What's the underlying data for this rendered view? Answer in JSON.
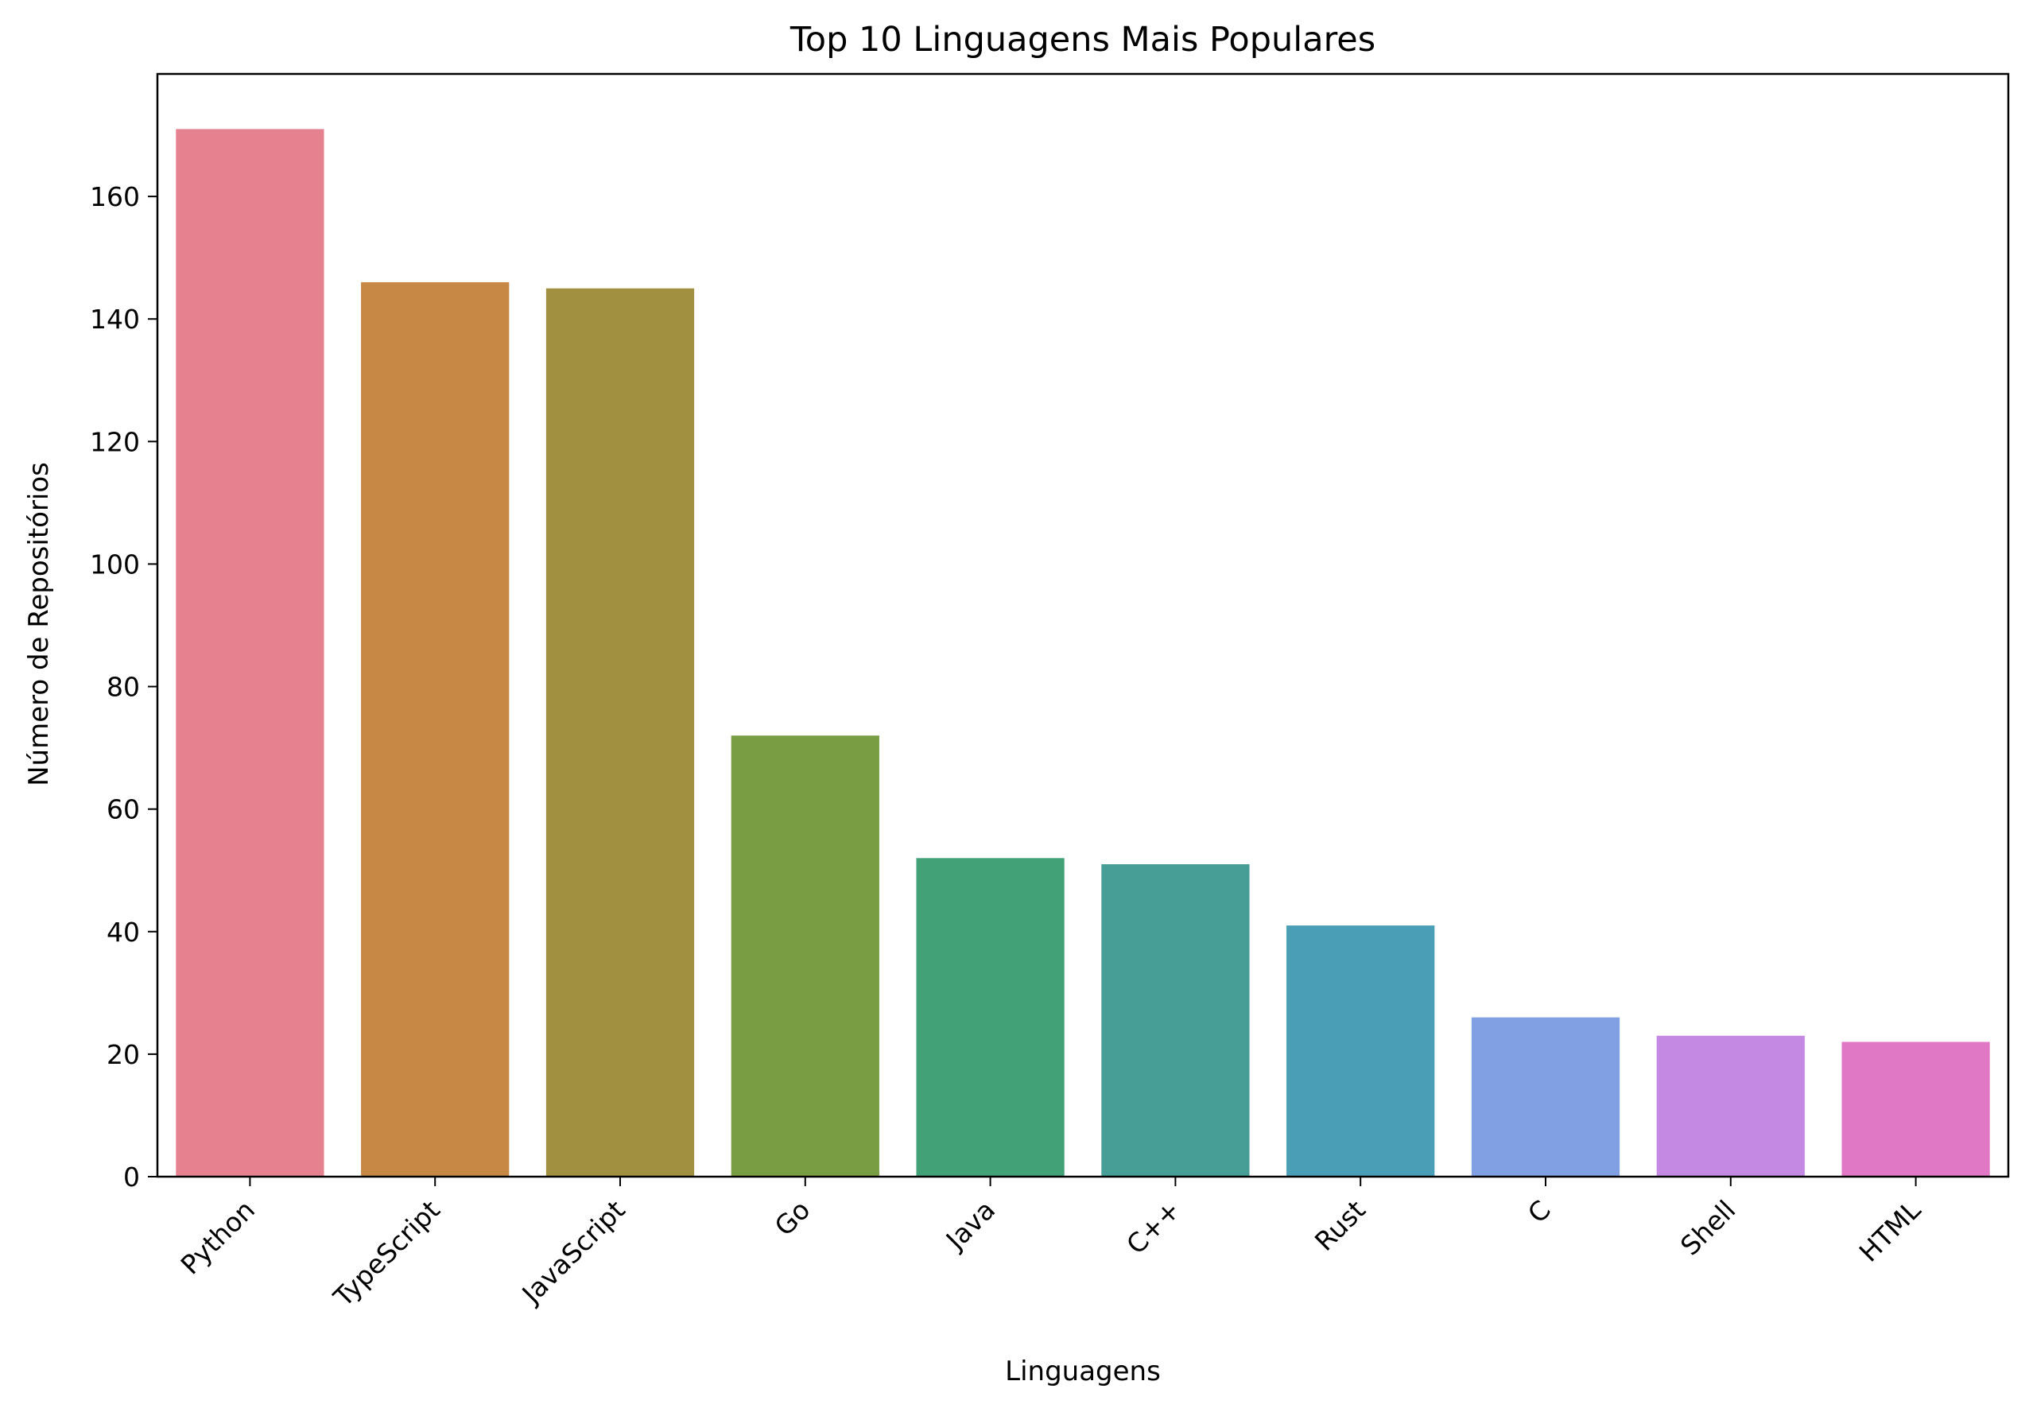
{
  "chart_data": {
    "type": "bar",
    "title": "Top 10 Linguagens Mais Populares",
    "xlabel": "Linguagens",
    "ylabel": "Número de Repositórios",
    "categories": [
      "Python",
      "TypeScript",
      "JavaScript",
      "Go",
      "Java",
      "C++",
      "Rust",
      "C",
      "Shell",
      "HTML"
    ],
    "values": [
      171,
      146,
      145,
      72,
      52,
      51,
      41,
      26,
      23,
      22
    ],
    "colors": [
      "#e68190",
      "#c68844",
      "#a09040",
      "#789d42",
      "#43a177",
      "#469e97",
      "#4a9fb6",
      "#80a0e3",
      "#c48ae3",
      "#e178c5"
    ],
    "ylim": [
      0,
      180
    ],
    "yticks": [
      0,
      20,
      40,
      60,
      80,
      100,
      120,
      140,
      160
    ],
    "grid": false
  }
}
